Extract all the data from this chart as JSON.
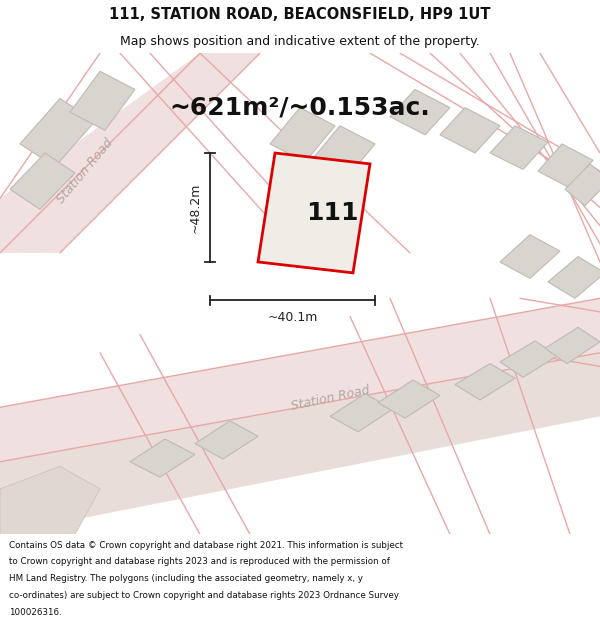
{
  "title_line1": "111, STATION ROAD, BEACONSFIELD, HP9 1UT",
  "title_line2": "Map shows position and indicative extent of the property.",
  "area_label": "~621m²/~0.153ac.",
  "property_number": "111",
  "dim_height": "~48.2m",
  "dim_width": "~40.1m",
  "footnote": "Contains OS data © Crown copyright and database right 2021. This information is subject to Crown copyright and database rights 2023 and is reproduced with the permission of HM Land Registry. The polygons (including the associated geometry, namely x, y co-ordinates) are subject to Crown copyright and database rights 2023 Ordnance Survey 100026316.",
  "bg_color": "#f5f0eb",
  "map_bg": "#ede8e2",
  "road_fill": "#f0e0e0",
  "road_edge": "#e8a8a8",
  "building_color": "#d8d4ce",
  "building_stroke": "#c0bab4",
  "property_fill": "#f0ece6",
  "property_stroke": "#dd0000",
  "dim_color": "#222222",
  "title_color": "#111111",
  "road_label_color": "#b0a8a0",
  "footnote_color": "#111111",
  "figsize": [
    6.0,
    6.25
  ],
  "dpi": 100,
  "title_fontsize": 10.5,
  "subtitle_fontsize": 9,
  "area_fontsize": 18,
  "footnote_fontsize": 6.3
}
